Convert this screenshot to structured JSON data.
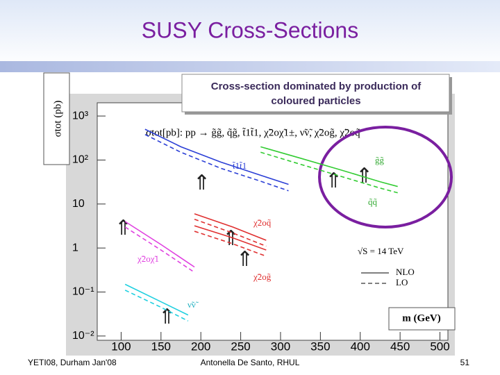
{
  "slide": {
    "title": "SUSY Cross-Sections",
    "callout": [
      "Cross-section dominated by production of",
      "coloured particles"
    ],
    "footer_left": "YETI08, Durham Jan'08",
    "footer_center": "Antonella De Santo, RHUL",
    "page_number": "51"
  },
  "chart_data": {
    "type": "line",
    "y_label": "σtot (pb)",
    "x_label": "m (GeV)",
    "formula": "σtot[pb]: pp → g̃g̃, q̃g̃, t̃1t̃1, χ̃2oχ̃1±, ν̃ν̃, χ̃2og̃, χ̃2oq̃",
    "log_y": true,
    "xlim": [
      70,
      510
    ],
    "ylim": [
      0.008,
      2000
    ],
    "xticks": [
      100,
      150,
      200,
      250,
      300,
      350,
      400,
      450,
      500
    ],
    "yticks": [
      {
        "value": 1000,
        "label": "10³"
      },
      {
        "value": 100,
        "label": "10²"
      },
      10,
      1,
      {
        "value": 0.1,
        "label": "10⁻¹"
      },
      {
        "value": 0.01,
        "label": "10⁻²"
      }
    ],
    "legend": {
      "title": "√S = 14 TeV",
      "entries": [
        {
          "label": "NLO",
          "style": "solid"
        },
        {
          "label": "LO",
          "style": "dashed"
        }
      ]
    },
    "curve_labels": [
      "t̃1t̃1",
      "g̃g̃",
      "q̃q̃",
      "χ̃2oq̃",
      "χ̃2og̃",
      "χ̃2oχ̃1",
      "ν̃ν̃"
    ],
    "series": [
      {
        "color": "#2b3fd6",
        "style": "solid",
        "x": [
          130,
          175,
          225,
          275,
          310
        ],
        "values": [
          500,
          200,
          90,
          45,
          28
        ]
      },
      {
        "color": "#2b3fd6",
        "style": "dashed",
        "x": [
          130,
          175,
          225,
          275,
          310
        ],
        "values": [
          380,
          150,
          65,
          33,
          20
        ]
      },
      {
        "color": "#33cc33",
        "style": "solid",
        "x": [
          275,
          325,
          375,
          425,
          447
        ],
        "values": [
          200,
          110,
          60,
          32,
          25
        ]
      },
      {
        "color": "#33cc33",
        "style": "dashed",
        "x": [
          275,
          325,
          375,
          425,
          447
        ],
        "values": [
          150,
          80,
          43,
          23,
          18
        ]
      },
      {
        "color": "#e03030",
        "style": "solid",
        "x": [
          192,
          240,
          282
        ],
        "values": [
          6,
          3,
          1.5
        ]
      },
      {
        "color": "#e03030",
        "style": "dashed",
        "x": [
          192,
          240,
          282
        ],
        "values": [
          4.5,
          2.2,
          1.1
        ]
      },
      {
        "color": "#e03030",
        "style": "solid",
        "x": [
          192,
          240,
          282
        ],
        "values": [
          3.2,
          1.7,
          0.9
        ]
      },
      {
        "color": "#e03030",
        "style": "dashed",
        "x": [
          192,
          240,
          282
        ],
        "values": [
          2.4,
          1.25,
          0.65
        ]
      },
      {
        "color": "#e040e0",
        "style": "solid",
        "x": [
          105,
          150,
          192
        ],
        "values": [
          4,
          1.2,
          0.37
        ]
      },
      {
        "color": "#e040e0",
        "style": "dashed",
        "x": [
          105,
          150,
          192
        ],
        "values": [
          3,
          0.9,
          0.28
        ]
      },
      {
        "color": "#20d0e0",
        "style": "solid",
        "x": [
          105,
          150,
          184
        ],
        "values": [
          0.15,
          0.06,
          0.03
        ]
      },
      {
        "color": "#20d0e0",
        "style": "dashed",
        "x": [
          105,
          150,
          184
        ],
        "values": [
          0.11,
          0.045,
          0.022
        ]
      }
    ]
  }
}
